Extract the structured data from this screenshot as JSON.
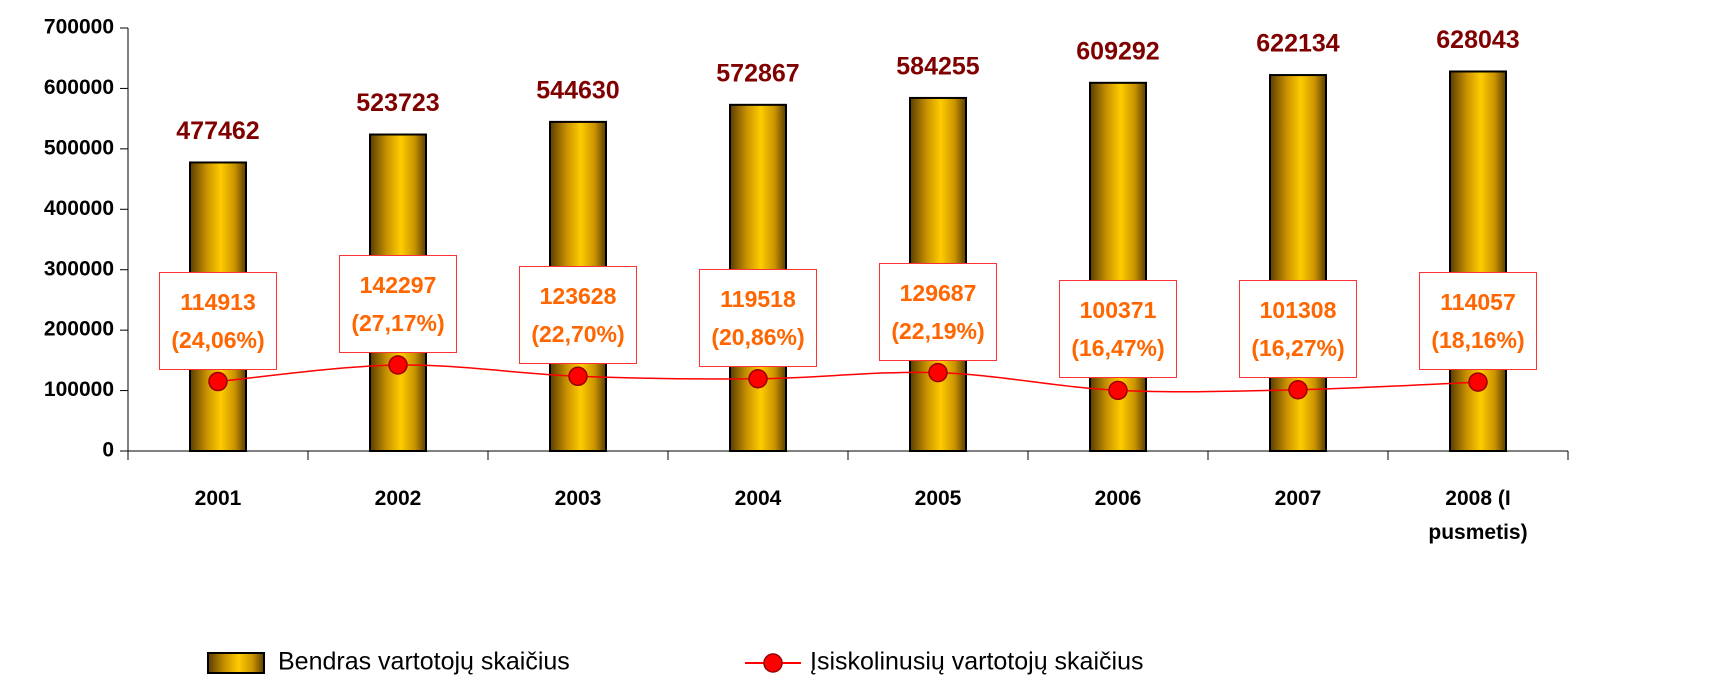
{
  "chart_data": {
    "type": "bar_line",
    "categories": [
      "2001",
      "2002",
      "2003",
      "2004",
      "2005",
      "2006",
      "2007",
      "2008 (I pusmetis)"
    ],
    "series": [
      {
        "name": "Bendras vartotojų skaičius",
        "type": "bar",
        "color": "#ffcc00",
        "values": [
          477462,
          523723,
          544630,
          572867,
          584255,
          609292,
          622134,
          628043
        ]
      },
      {
        "name": "Įsiskolinusių vartotojų skaičius",
        "type": "line",
        "color": "#ff0000",
        "values": [
          114913,
          142297,
          123628,
          119518,
          129687,
          100371,
          101308,
          114057
        ],
        "value_labels": [
          "114913 (24,06%)",
          "142297 (27,17%)",
          "123628 (22,70%)",
          "119518 (20,86%)",
          "129687 (22,19%)",
          "100371 (16,47%)",
          "101308 (16,27%)",
          "114057 (18,16%)"
        ]
      }
    ],
    "ylim": [
      0,
      700000
    ],
    "yticks": [
      0,
      100000,
      200000,
      300000,
      400000,
      500000,
      600000,
      700000
    ],
    "legend": "bottom"
  }
}
